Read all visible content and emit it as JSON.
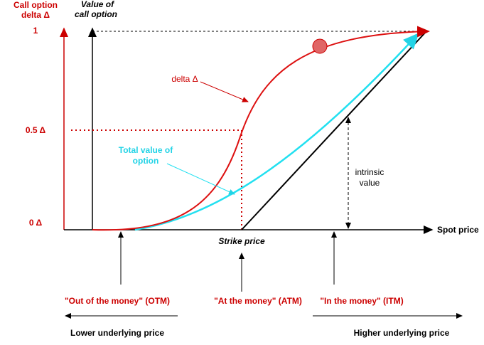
{
  "y_axis_delta": {
    "title_lines": [
      "Call option",
      "delta Δ"
    ],
    "ticks": [
      "1",
      "0.5 Δ",
      "0 Δ"
    ]
  },
  "y_axis_value": {
    "title_lines": [
      "Value of",
      "call option"
    ]
  },
  "x_axis": {
    "title": "Spot price",
    "strike_label": "Strike price"
  },
  "annotations": {
    "delta": "delta Δ",
    "total_value_lines": [
      "Total value of",
      "option"
    ],
    "intrinsic_lines": [
      "intrinsic",
      "value"
    ]
  },
  "regions": [
    "\"Out of the money\" (OTM)",
    "\"At the money\" (ATM)",
    "\"In the money\" (ITM)"
  ],
  "directions": [
    "Lower underlying price",
    "Higher underlying price"
  ]
}
